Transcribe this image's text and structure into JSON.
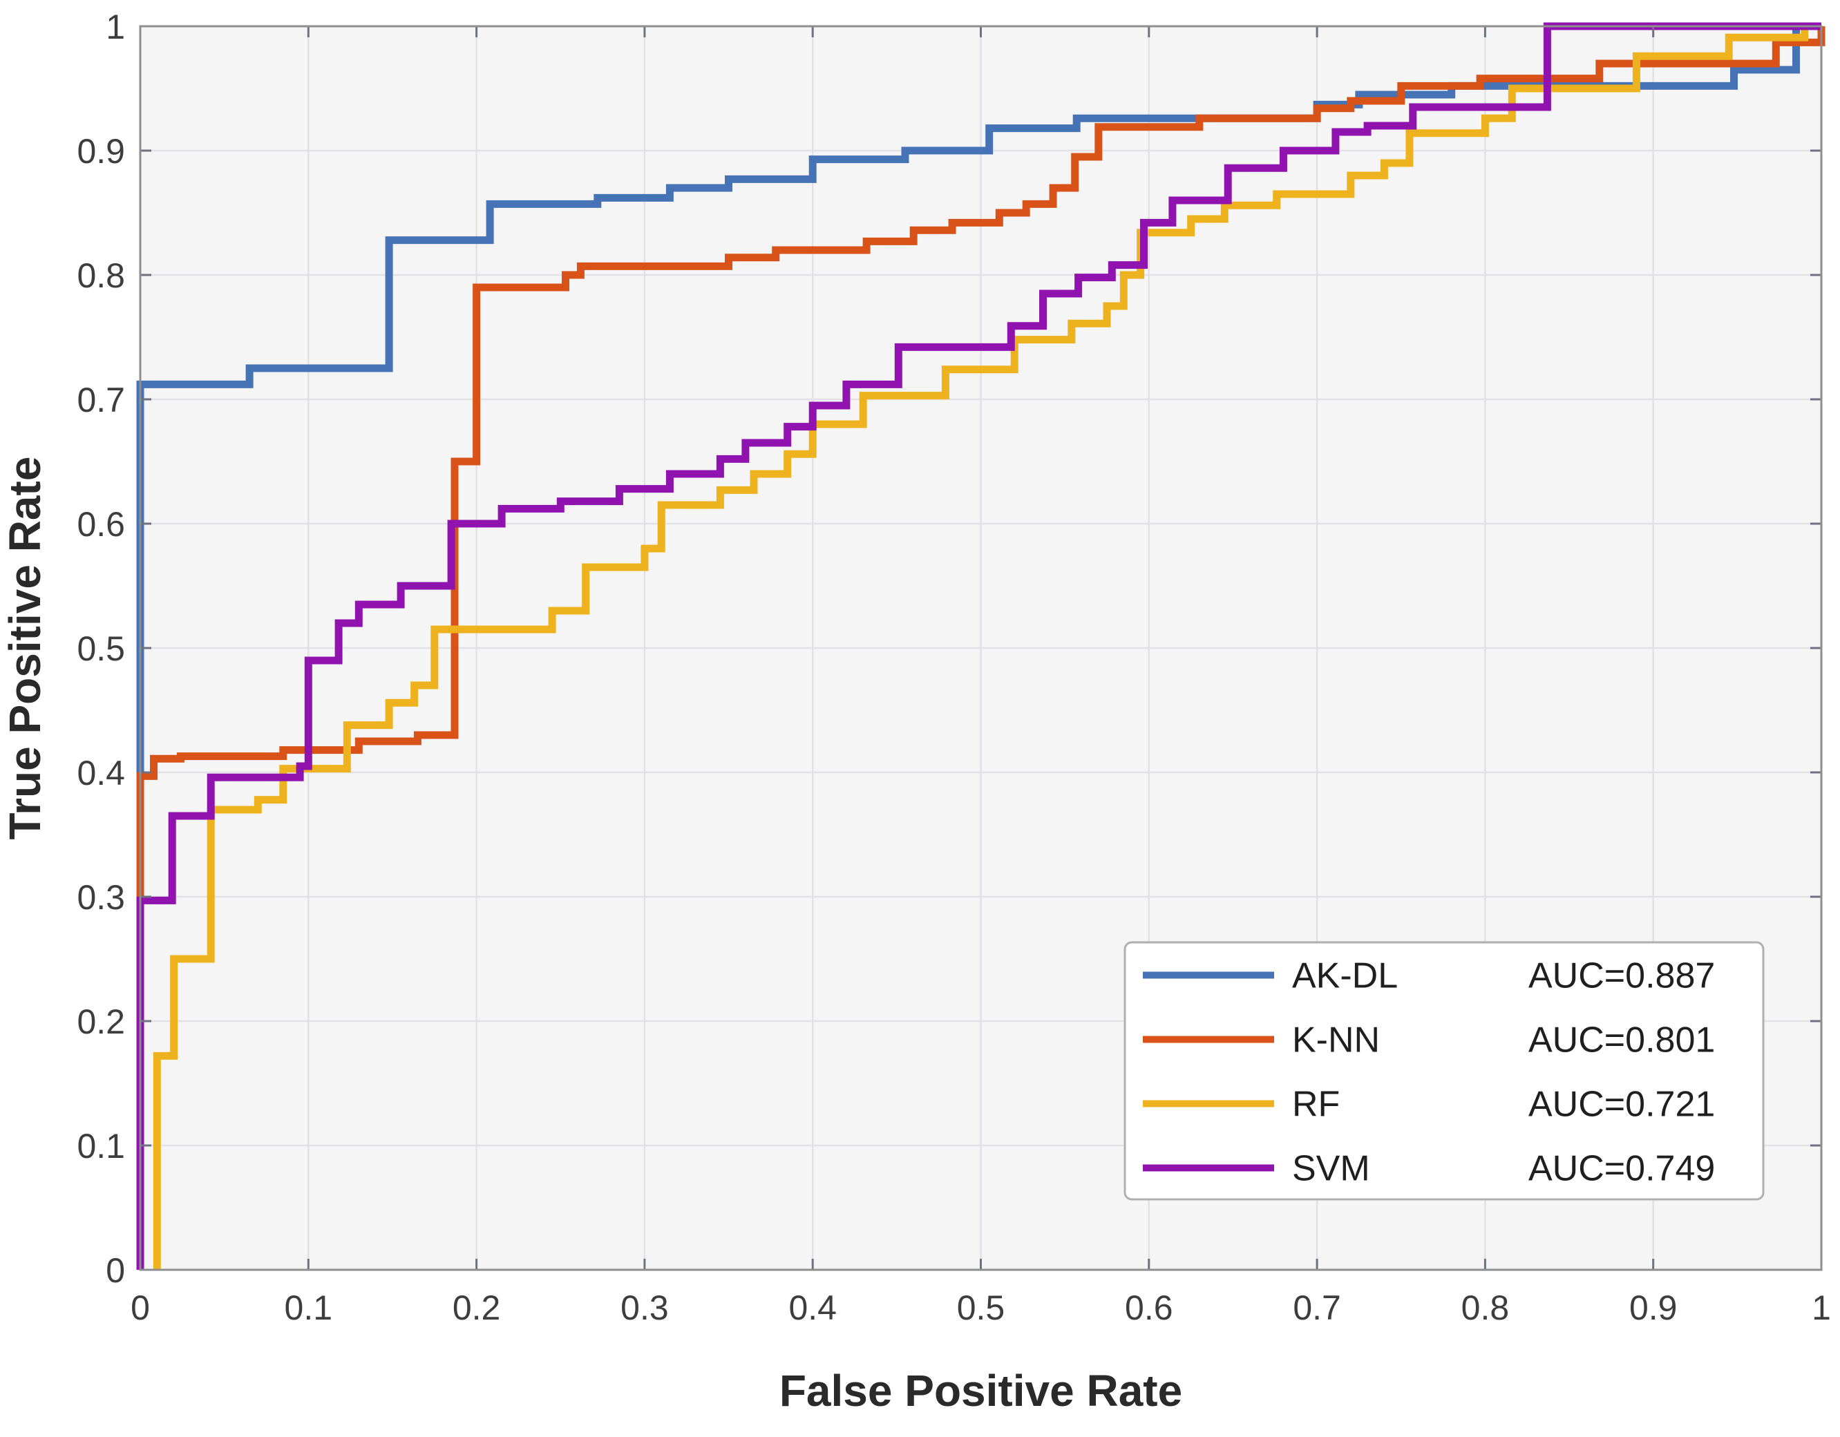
{
  "chart_data": {
    "type": "line",
    "variant": "roc_step_curves",
    "title": "",
    "xlabel": "False Positive Rate",
    "ylabel": "True Positive Rate",
    "xlim": [
      0,
      1
    ],
    "ylim": [
      0,
      1
    ],
    "grid": true,
    "legend_position": "bottom-right",
    "xticks": {
      "values": [
        0,
        0.1,
        0.2,
        0.3,
        0.4,
        0.5,
        0.6,
        0.7,
        0.8,
        0.9,
        1
      ],
      "labels": [
        "0",
        "0.1",
        "0.2",
        "0.3",
        "0.4",
        "0.5",
        "0.6",
        "0.7",
        "0.8",
        "0.9",
        "1"
      ]
    },
    "yticks": {
      "values": [
        0,
        0.1,
        0.2,
        0.3,
        0.4,
        0.5,
        0.6,
        0.7,
        0.8,
        0.9,
        1
      ],
      "labels": [
        "0",
        "0.1",
        "0.2",
        "0.3",
        "0.4",
        "0.5",
        "0.6",
        "0.7",
        "0.8",
        "0.9",
        "1"
      ]
    },
    "colors": {
      "plot_bg": "#f5f5f6",
      "grid": "#e2e2e5",
      "axis_border": "#8e8e8e",
      "tick": "#6e7180",
      "tick_label": "#3d3d3d",
      "axis_title": "#2a2a2a",
      "legend_bg": "#ffffff",
      "legend_border": "#afafaf",
      "legend_text": "#1f1f1f"
    },
    "series": [
      {
        "name": "AK-DL",
        "auc": 0.887,
        "auc_label": "AUC=0.887",
        "color": "#4673b5",
        "points": [
          [
            0,
            0
          ],
          [
            0,
            0.712
          ],
          [
            0.065,
            0.712
          ],
          [
            0.065,
            0.725
          ],
          [
            0.148,
            0.725
          ],
          [
            0.148,
            0.828
          ],
          [
            0.208,
            0.828
          ],
          [
            0.208,
            0.857
          ],
          [
            0.272,
            0.857
          ],
          [
            0.272,
            0.862
          ],
          [
            0.315,
            0.862
          ],
          [
            0.315,
            0.87
          ],
          [
            0.35,
            0.87
          ],
          [
            0.35,
            0.877
          ],
          [
            0.4,
            0.877
          ],
          [
            0.4,
            0.893
          ],
          [
            0.455,
            0.893
          ],
          [
            0.455,
            0.9
          ],
          [
            0.505,
            0.9
          ],
          [
            0.505,
            0.918
          ],
          [
            0.557,
            0.918
          ],
          [
            0.557,
            0.926
          ],
          [
            0.7,
            0.926
          ],
          [
            0.7,
            0.937
          ],
          [
            0.725,
            0.937
          ],
          [
            0.725,
            0.945
          ],
          [
            0.78,
            0.945
          ],
          [
            0.78,
            0.952
          ],
          [
            0.948,
            0.952
          ],
          [
            0.948,
            0.965
          ],
          [
            0.985,
            0.965
          ],
          [
            0.985,
            1
          ],
          [
            1,
            1
          ]
        ]
      },
      {
        "name": "K-NN",
        "auc": 0.801,
        "auc_label": "AUC=0.801",
        "color": "#d95319",
        "points": [
          [
            0,
            0
          ],
          [
            0,
            0.397
          ],
          [
            0.008,
            0.397
          ],
          [
            0.008,
            0.411
          ],
          [
            0.024,
            0.411
          ],
          [
            0.024,
            0.413
          ],
          [
            0.085,
            0.413
          ],
          [
            0.085,
            0.418
          ],
          [
            0.13,
            0.418
          ],
          [
            0.13,
            0.425
          ],
          [
            0.165,
            0.425
          ],
          [
            0.165,
            0.43
          ],
          [
            0.187,
            0.43
          ],
          [
            0.187,
            0.65
          ],
          [
            0.2,
            0.65
          ],
          [
            0.2,
            0.79
          ],
          [
            0.253,
            0.79
          ],
          [
            0.253,
            0.8
          ],
          [
            0.262,
            0.8
          ],
          [
            0.262,
            0.807
          ],
          [
            0.35,
            0.807
          ],
          [
            0.35,
            0.814
          ],
          [
            0.378,
            0.814
          ],
          [
            0.378,
            0.82
          ],
          [
            0.432,
            0.82
          ],
          [
            0.432,
            0.827
          ],
          [
            0.46,
            0.827
          ],
          [
            0.46,
            0.836
          ],
          [
            0.483,
            0.836
          ],
          [
            0.483,
            0.842
          ],
          [
            0.511,
            0.842
          ],
          [
            0.511,
            0.85
          ],
          [
            0.527,
            0.85
          ],
          [
            0.527,
            0.857
          ],
          [
            0.543,
            0.857
          ],
          [
            0.543,
            0.87
          ],
          [
            0.556,
            0.87
          ],
          [
            0.556,
            0.895
          ],
          [
            0.57,
            0.895
          ],
          [
            0.57,
            0.919
          ],
          [
            0.63,
            0.919
          ],
          [
            0.63,
            0.926
          ],
          [
            0.7,
            0.926
          ],
          [
            0.7,
            0.934
          ],
          [
            0.72,
            0.934
          ],
          [
            0.72,
            0.94
          ],
          [
            0.75,
            0.94
          ],
          [
            0.75,
            0.952
          ],
          [
            0.797,
            0.952
          ],
          [
            0.797,
            0.958
          ],
          [
            0.868,
            0.958
          ],
          [
            0.868,
            0.97
          ],
          [
            0.973,
            0.97
          ],
          [
            0.973,
            0.987
          ],
          [
            1,
            0.987
          ],
          [
            1,
            1
          ]
        ]
      },
      {
        "name": "RF",
        "auc": 0.721,
        "auc_label": "AUC=0.721",
        "color": "#eeb21f",
        "points": [
          [
            0.01,
            0
          ],
          [
            0.01,
            0.172
          ],
          [
            0.02,
            0.172
          ],
          [
            0.02,
            0.25
          ],
          [
            0.042,
            0.25
          ],
          [
            0.042,
            0.37
          ],
          [
            0.07,
            0.37
          ],
          [
            0.07,
            0.378
          ],
          [
            0.085,
            0.378
          ],
          [
            0.085,
            0.403
          ],
          [
            0.123,
            0.403
          ],
          [
            0.123,
            0.438
          ],
          [
            0.148,
            0.438
          ],
          [
            0.148,
            0.456
          ],
          [
            0.163,
            0.456
          ],
          [
            0.163,
            0.47
          ],
          [
            0.175,
            0.47
          ],
          [
            0.175,
            0.515
          ],
          [
            0.245,
            0.515
          ],
          [
            0.245,
            0.53
          ],
          [
            0.265,
            0.53
          ],
          [
            0.265,
            0.565
          ],
          [
            0.3,
            0.565
          ],
          [
            0.3,
            0.58
          ],
          [
            0.31,
            0.58
          ],
          [
            0.31,
            0.615
          ],
          [
            0.345,
            0.615
          ],
          [
            0.345,
            0.627
          ],
          [
            0.365,
            0.627
          ],
          [
            0.365,
            0.64
          ],
          [
            0.385,
            0.64
          ],
          [
            0.385,
            0.656
          ],
          [
            0.4,
            0.656
          ],
          [
            0.4,
            0.68
          ],
          [
            0.43,
            0.68
          ],
          [
            0.43,
            0.703
          ],
          [
            0.479,
            0.703
          ],
          [
            0.479,
            0.724
          ],
          [
            0.52,
            0.724
          ],
          [
            0.52,
            0.748
          ],
          [
            0.554,
            0.748
          ],
          [
            0.554,
            0.761
          ],
          [
            0.575,
            0.761
          ],
          [
            0.575,
            0.775
          ],
          [
            0.585,
            0.775
          ],
          [
            0.585,
            0.8
          ],
          [
            0.595,
            0.8
          ],
          [
            0.595,
            0.834
          ],
          [
            0.625,
            0.834
          ],
          [
            0.625,
            0.845
          ],
          [
            0.645,
            0.845
          ],
          [
            0.645,
            0.856
          ],
          [
            0.676,
            0.856
          ],
          [
            0.676,
            0.865
          ],
          [
            0.72,
            0.865
          ],
          [
            0.72,
            0.88
          ],
          [
            0.74,
            0.88
          ],
          [
            0.74,
            0.89
          ],
          [
            0.755,
            0.89
          ],
          [
            0.755,
            0.914
          ],
          [
            0.8,
            0.914
          ],
          [
            0.8,
            0.926
          ],
          [
            0.816,
            0.926
          ],
          [
            0.816,
            0.95
          ],
          [
            0.89,
            0.95
          ],
          [
            0.89,
            0.976
          ],
          [
            0.945,
            0.976
          ],
          [
            0.945,
            0.991
          ],
          [
            0.99,
            0.991
          ],
          [
            0.99,
            1
          ],
          [
            1,
            1
          ]
        ]
      },
      {
        "name": "SVM",
        "auc": 0.749,
        "auc_label": "AUC=0.749",
        "color": "#9013b0",
        "points": [
          [
            0,
            0
          ],
          [
            0,
            0.297
          ],
          [
            0.019,
            0.297
          ],
          [
            0.019,
            0.365
          ],
          [
            0.042,
            0.365
          ],
          [
            0.042,
            0.396
          ],
          [
            0.095,
            0.396
          ],
          [
            0.095,
            0.405
          ],
          [
            0.1,
            0.405
          ],
          [
            0.1,
            0.49
          ],
          [
            0.118,
            0.49
          ],
          [
            0.118,
            0.52
          ],
          [
            0.13,
            0.52
          ],
          [
            0.13,
            0.535
          ],
          [
            0.155,
            0.535
          ],
          [
            0.155,
            0.55
          ],
          [
            0.185,
            0.55
          ],
          [
            0.185,
            0.6
          ],
          [
            0.215,
            0.6
          ],
          [
            0.215,
            0.612
          ],
          [
            0.25,
            0.612
          ],
          [
            0.25,
            0.618
          ],
          [
            0.285,
            0.618
          ],
          [
            0.285,
            0.628
          ],
          [
            0.315,
            0.628
          ],
          [
            0.315,
            0.64
          ],
          [
            0.345,
            0.64
          ],
          [
            0.345,
            0.652
          ],
          [
            0.36,
            0.652
          ],
          [
            0.36,
            0.665
          ],
          [
            0.385,
            0.665
          ],
          [
            0.385,
            0.678
          ],
          [
            0.4,
            0.678
          ],
          [
            0.4,
            0.695
          ],
          [
            0.42,
            0.695
          ],
          [
            0.42,
            0.712
          ],
          [
            0.451,
            0.712
          ],
          [
            0.451,
            0.742
          ],
          [
            0.518,
            0.742
          ],
          [
            0.518,
            0.759
          ],
          [
            0.537,
            0.759
          ],
          [
            0.537,
            0.785
          ],
          [
            0.558,
            0.785
          ],
          [
            0.558,
            0.798
          ],
          [
            0.578,
            0.798
          ],
          [
            0.578,
            0.808
          ],
          [
            0.597,
            0.808
          ],
          [
            0.597,
            0.842
          ],
          [
            0.614,
            0.842
          ],
          [
            0.614,
            0.86
          ],
          [
            0.647,
            0.86
          ],
          [
            0.647,
            0.886
          ],
          [
            0.68,
            0.886
          ],
          [
            0.68,
            0.9
          ],
          [
            0.711,
            0.9
          ],
          [
            0.711,
            0.915
          ],
          [
            0.73,
            0.915
          ],
          [
            0.73,
            0.92
          ],
          [
            0.757,
            0.92
          ],
          [
            0.757,
            0.935
          ],
          [
            0.837,
            0.935
          ],
          [
            0.837,
            1
          ],
          [
            1,
            1
          ]
        ]
      }
    ]
  }
}
